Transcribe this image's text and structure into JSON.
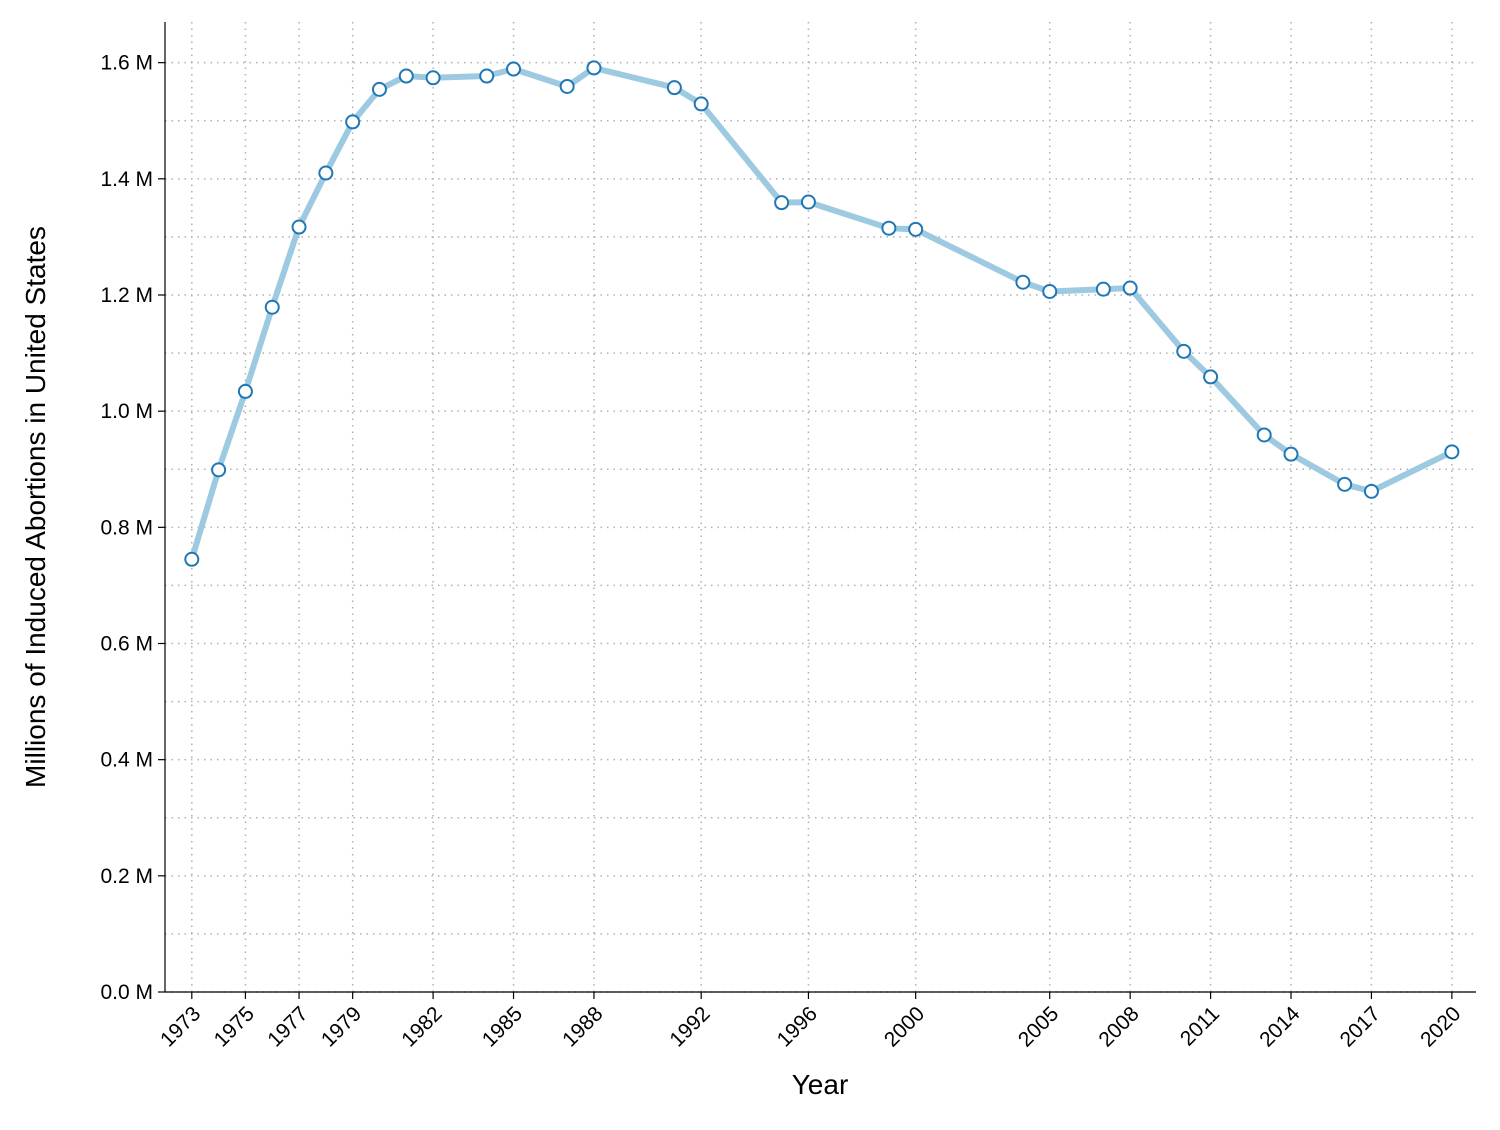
{
  "chart_data": {
    "type": "line",
    "title": "",
    "xlabel": "Year",
    "ylabel": "Millions of Induced Abortions in United States",
    "xlim": [
      1972,
      2020.9
    ],
    "ylim": [
      0,
      1.67
    ],
    "x_ticks": [
      1973,
      1975,
      1977,
      1979,
      1982,
      1985,
      1988,
      1992,
      1996,
      2000,
      2005,
      2008,
      2011,
      2014,
      2017,
      2020
    ],
    "x_tick_labels": [
      "1973",
      "1975",
      "1977",
      "1979",
      "1982",
      "1985",
      "1988",
      "1992",
      "1996",
      "2000",
      "2005",
      "2008",
      "2011",
      "2014",
      "2017",
      "2020"
    ],
    "y_ticks": [
      0,
      0.2,
      0.4,
      0.6,
      0.8,
      1.0,
      1.2,
      1.4,
      1.6
    ],
    "y_tick_labels": [
      "0.0 M",
      "0.2 M",
      "0.4 M",
      "0.6 M",
      "0.8 M",
      "1.0 M",
      "1.2 M",
      "1.4 M",
      "1.6 M"
    ],
    "grid": true,
    "series": [
      {
        "x": [
          1973,
          1974,
          1975,
          1976,
          1977,
          1978,
          1979,
          1980,
          1981,
          1982,
          1984,
          1985,
          1987,
          1988,
          1991,
          1992,
          1995,
          1996,
          1999,
          2000,
          2004,
          2005,
          2007,
          2008,
          2010,
          2011,
          2013,
          2014,
          2016,
          2017,
          2020
        ],
        "y": [
          0.745,
          0.899,
          1.034,
          1.179,
          1.317,
          1.41,
          1.498,
          1.554,
          1.577,
          1.574,
          1.577,
          1.589,
          1.559,
          1.591,
          1.557,
          1.529,
          1.359,
          1.36,
          1.315,
          1.313,
          1.222,
          1.206,
          1.21,
          1.212,
          1.103,
          1.059,
          0.959,
          0.926,
          0.874,
          0.862,
          0.93
        ],
        "line_color": "#9ecae1",
        "marker_edge_color": "#1f77b4",
        "marker_face_color": "#ffffff"
      }
    ],
    "colors": {
      "background": "#ffffff",
      "axis": "#000000",
      "grid": "#b0b0b0"
    }
  }
}
